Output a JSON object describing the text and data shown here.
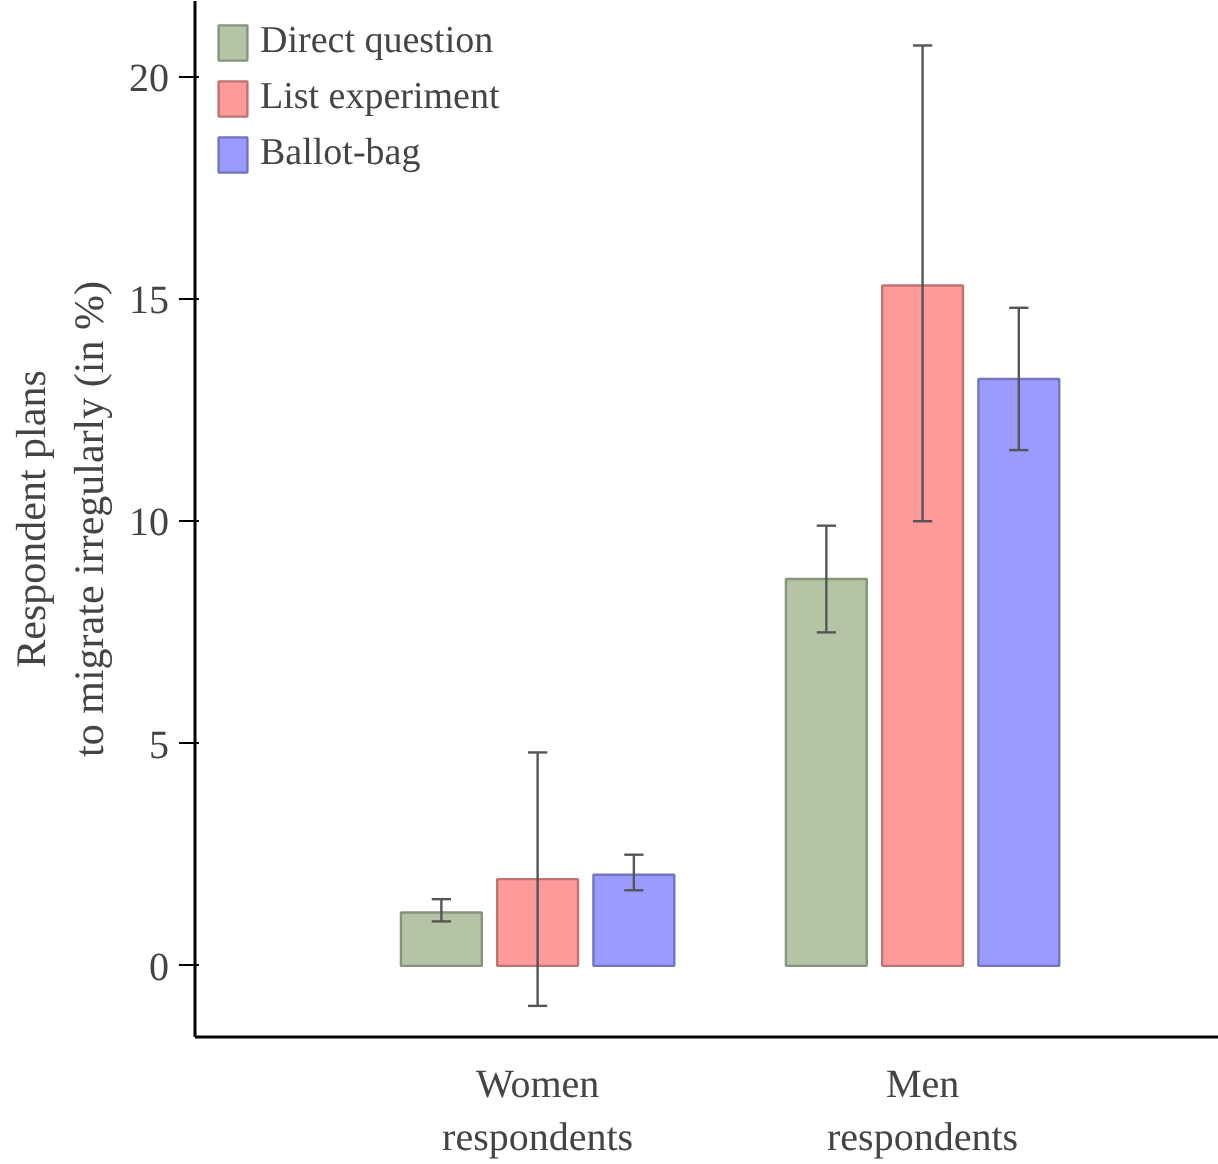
{
  "chart_data": {
    "type": "bar",
    "ylabel": "Respondent plans\nto migrate irregularly (in %)",
    "categories": [
      "Women\nrespondents",
      "Men\nrespondents"
    ],
    "series": [
      {
        "name": "Direct question",
        "color": "#b5c4a5",
        "values": [
          1.2,
          8.7
        ],
        "errors": [
          [
            1.0,
            1.5
          ],
          [
            7.5,
            9.9
          ]
        ]
      },
      {
        "name": "List experiment",
        "color": "#ff9a9a",
        "values": [
          1.95,
          15.3
        ],
        "errors": [
          [
            -0.9,
            4.8
          ],
          [
            10.0,
            20.7
          ]
        ]
      },
      {
        "name": "Ballot-bag",
        "color": "#9b9bff",
        "values": [
          2.05,
          13.2
        ],
        "errors": [
          [
            1.7,
            2.5
          ],
          [
            11.6,
            14.8
          ]
        ]
      }
    ],
    "ylim": [
      -1.6,
      21.7
    ],
    "yticks": [
      0,
      5,
      10,
      15,
      20
    ],
    "grid": false,
    "legend": "top left"
  }
}
